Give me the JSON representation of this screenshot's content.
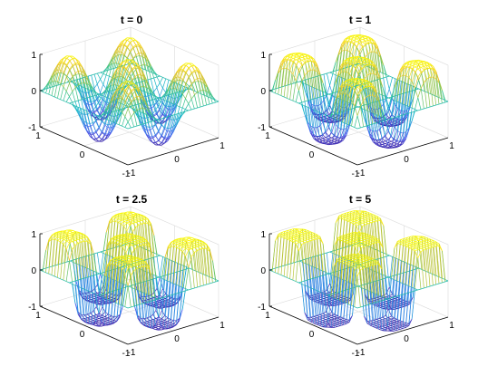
{
  "chart_data": [
    {
      "type": "surface-mesh",
      "title": "t = 0",
      "t": 0,
      "xlim": [
        -1,
        1
      ],
      "ylim": [
        -1,
        1
      ],
      "zlim": [
        -1,
        1
      ],
      "x_ticks": [
        "-1",
        "0",
        "1"
      ],
      "y_ticks": [
        "-1",
        "0",
        "1"
      ],
      "z_ticks": [
        "-1",
        "0",
        "1"
      ]
    },
    {
      "type": "surface-mesh",
      "title": "t = 1",
      "t": 1,
      "xlim": [
        -1,
        1
      ],
      "ylim": [
        -1,
        1
      ],
      "zlim": [
        -1,
        1
      ],
      "x_ticks": [
        "-1",
        "0",
        "1"
      ],
      "y_ticks": [
        "-1",
        "0",
        "1"
      ],
      "z_ticks": [
        "-1",
        "0",
        "1"
      ]
    },
    {
      "type": "surface-mesh",
      "title": "t = 2.5",
      "t": 2.5,
      "xlim": [
        -1,
        1
      ],
      "ylim": [
        -1,
        1
      ],
      "zlim": [
        -1,
        1
      ],
      "x_ticks": [
        "-1",
        "0",
        "1"
      ],
      "y_ticks": [
        "-1",
        "0",
        "1"
      ],
      "z_ticks": [
        "-1",
        "0",
        "1"
      ]
    },
    {
      "type": "surface-mesh",
      "title": "t = 5",
      "t": 5,
      "xlim": [
        -1,
        1
      ],
      "ylim": [
        -1,
        1
      ],
      "zlim": [
        -1,
        1
      ],
      "x_ticks": [
        "-1",
        "0",
        "1"
      ],
      "y_ticks": [
        "-1",
        "0",
        "1"
      ],
      "z_ticks": [
        "-1",
        "0",
        "1"
      ]
    }
  ],
  "colormap": [
    "#3e26a8",
    "#4a5ef0",
    "#2f96e0",
    "#10b4c8",
    "#35c28c",
    "#a7c43c",
    "#f0c52e",
    "#f9fb0e"
  ]
}
